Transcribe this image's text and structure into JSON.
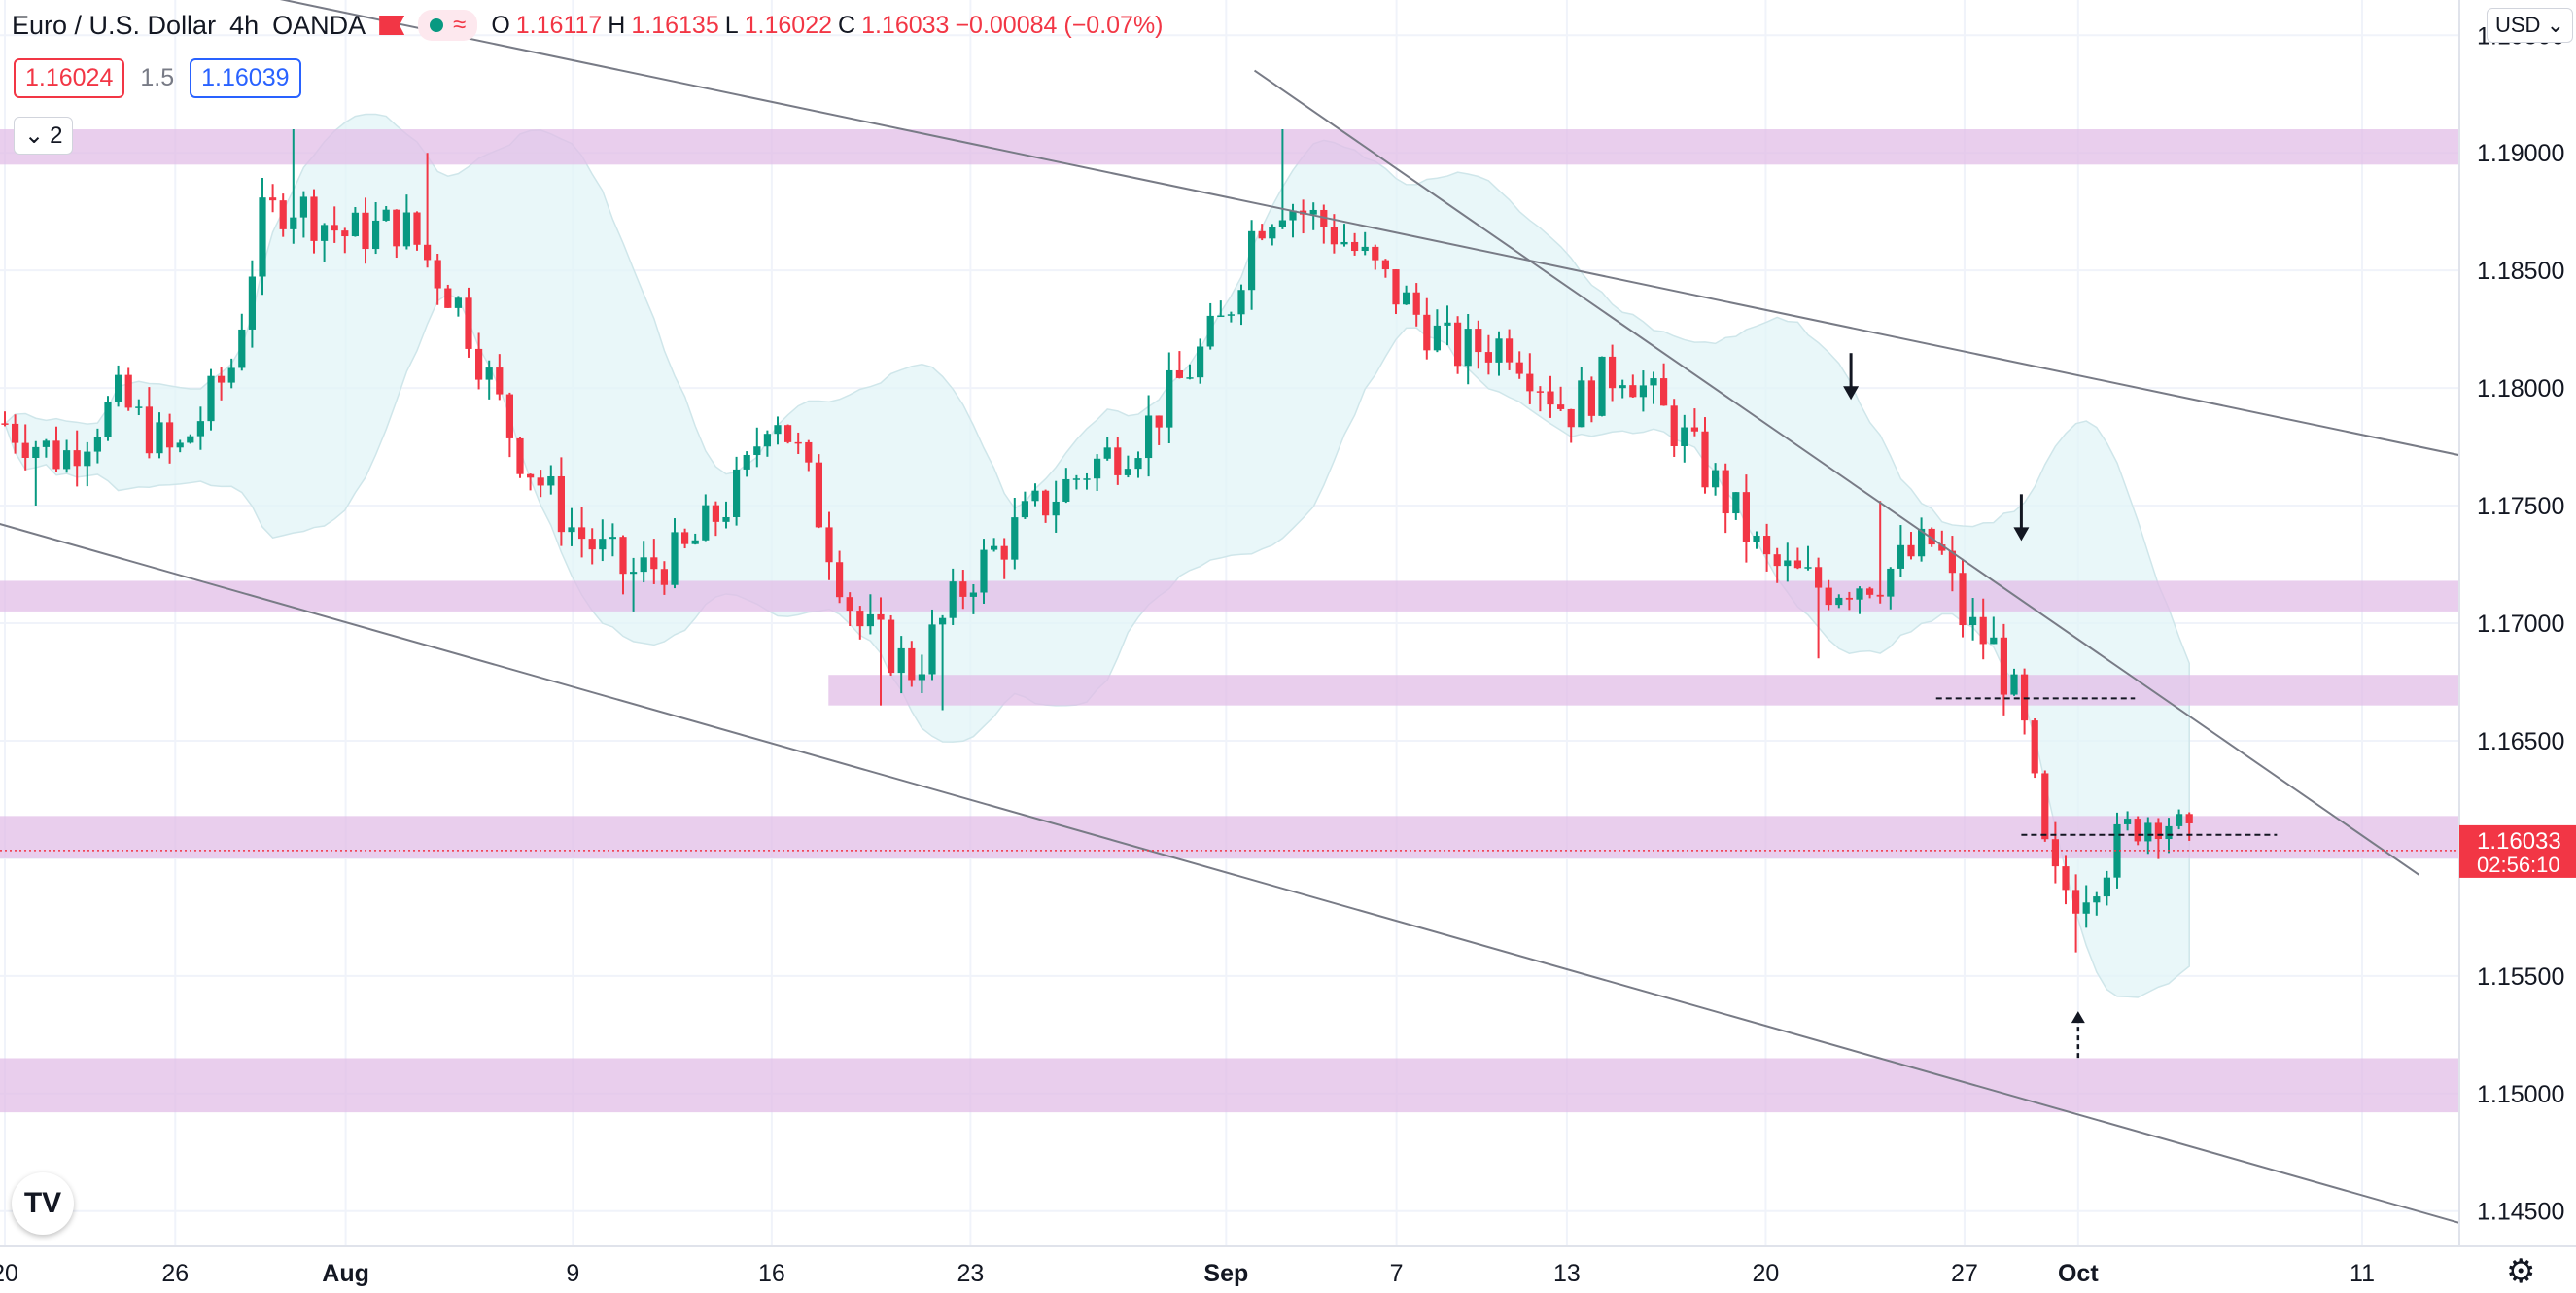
{
  "header": {
    "symbol": "Euro / U.S. Dollar",
    "interval": "4h",
    "broker": "OANDA",
    "ohlc": {
      "open_label": "O",
      "open": "1.16117",
      "high_label": "H",
      "high": "1.16135",
      "low_label": "L",
      "low": "1.16022",
      "close_label": "C",
      "close": "1.16033",
      "change": "−0.00084 (−0.07%)"
    },
    "sell_price": "1.16024",
    "spread": "1.5",
    "buy_price": "1.16039",
    "indicators_count": "2",
    "currency": "USD",
    "logo_text": "TV"
  },
  "colors": {
    "up": "#089981",
    "down": "#f23645",
    "zone": "#e1bee7",
    "band": "#e0f4f7",
    "trend": "#787b86",
    "grid": "#f0f3fa"
  },
  "chart_data": {
    "type": "candlestick",
    "title": "Euro / U.S. Dollar · 4h · OANDA",
    "ylim": [
      1.1435,
      1.1965
    ],
    "y_ticks": [
      1.145,
      1.15,
      1.155,
      1.16,
      1.165,
      1.17,
      1.175,
      1.18,
      1.185,
      1.19,
      1.195
    ],
    "y_tick_labels": [
      "1.14500",
      "1.15000",
      "1.15500",
      "1.16000",
      "1.16500",
      "1.17000",
      "1.17500",
      "1.18000",
      "1.18500",
      "1.19000",
      "1.19500"
    ],
    "x_tick_labels": [
      "20",
      "26",
      "Aug",
      "9",
      "16",
      "23",
      "Sep",
      "7",
      "13",
      "20",
      "27",
      "Oct",
      "11"
    ],
    "x_tick_dates": [
      "2021-07-20",
      "2021-07-26",
      "2021-08-01",
      "2021-08-09",
      "2021-08-16",
      "2021-08-23",
      "2021-09-01",
      "2021-09-07",
      "2021-09-13",
      "2021-09-20",
      "2021-09-27",
      "2021-10-01",
      "2021-10-11"
    ],
    "last_price": "1.16033",
    "countdown": "02:56:10",
    "close_path": [
      [
        "2021-07-20",
        1.1785
      ],
      [
        "2021-07-22",
        1.177
      ],
      [
        "2021-07-24",
        1.1795
      ],
      [
        "2021-07-26",
        1.177
      ],
      [
        "2021-07-28",
        1.181
      ],
      [
        "2021-07-29",
        1.187
      ],
      [
        "2021-07-30",
        1.188
      ],
      [
        "2021-08-01",
        1.1865
      ],
      [
        "2021-08-03",
        1.187
      ],
      [
        "2021-08-05",
        1.1835
      ],
      [
        "2021-08-07",
        1.1775
      ],
      [
        "2021-08-09",
        1.174
      ],
      [
        "2021-08-11",
        1.172
      ],
      [
        "2021-08-13",
        1.173
      ],
      [
        "2021-08-15",
        1.176
      ],
      [
        "2021-08-16",
        1.1795
      ],
      [
        "2021-08-17",
        1.177
      ],
      [
        "2021-08-19",
        1.17
      ],
      [
        "2021-08-21",
        1.168
      ],
      [
        "2021-08-23",
        1.172
      ],
      [
        "2021-08-25",
        1.1745
      ],
      [
        "2021-08-27",
        1.1765
      ],
      [
        "2021-08-29",
        1.178
      ],
      [
        "2021-09-01",
        1.183
      ],
      [
        "2021-09-02",
        1.187
      ],
      [
        "2021-09-03",
        1.188
      ],
      [
        "2021-09-05",
        1.1865
      ],
      [
        "2021-09-07",
        1.184
      ],
      [
        "2021-09-09",
        1.1815
      ],
      [
        "2021-09-11",
        1.182
      ],
      [
        "2021-09-13",
        1.179
      ],
      [
        "2021-09-15",
        1.181
      ],
      [
        "2021-09-17",
        1.178
      ],
      [
        "2021-09-19",
        1.1745
      ],
      [
        "2021-09-20",
        1.1725
      ],
      [
        "2021-09-22",
        1.1715
      ],
      [
        "2021-09-24",
        1.172
      ],
      [
        "2021-09-26",
        1.1735
      ],
      [
        "2021-09-27",
        1.17
      ],
      [
        "2021-09-28",
        1.169
      ],
      [
        "2021-09-29",
        1.166
      ],
      [
        "2021-09-30",
        1.159
      ],
      [
        "2021-10-01",
        1.1585
      ],
      [
        "2021-10-03",
        1.1615
      ],
      [
        "2021-10-04",
        1.162
      ],
      [
        "2021-10-05",
        1.1603
      ]
    ],
    "swing_highs": [
      [
        "2021-07-30",
        1.191
      ],
      [
        "2021-08-04",
        1.19
      ],
      [
        "2021-09-03",
        1.191
      ],
      [
        "2021-09-24",
        1.1752
      ]
    ],
    "swing_lows": [
      [
        "2021-07-21",
        1.175
      ],
      [
        "2021-08-11",
        1.1705
      ],
      [
        "2021-08-20",
        1.1665
      ],
      [
        "2021-08-22",
        1.1663
      ],
      [
        "2021-09-22",
        1.1685
      ],
      [
        "2021-10-01",
        1.156
      ]
    ],
    "zones": [
      [
        1.1895,
        1.191
      ],
      [
        1.1705,
        1.1718
      ],
      [
        1.1665,
        1.1678
      ],
      [
        1.16,
        1.1618
      ],
      [
        1.1492,
        1.1515
      ]
    ],
    "trendlines": [
      {
        "from": [
          "2021-07-16",
          1.2
        ],
        "to": [
          "2021-10-15",
          1.177
        ]
      },
      {
        "from": [
          "2021-07-19",
          1.1745
        ],
        "to": [
          "2021-10-15",
          1.1443
        ]
      },
      {
        "from": [
          "2021-09-02",
          1.1935
        ],
        "to": [
          "2021-10-13",
          1.1593
        ]
      }
    ],
    "level_lines": [
      {
        "from": [
          "2021-09-26",
          1.1668
        ],
        "to": [
          "2021-10-03",
          1.1668
        ]
      },
      {
        "from": [
          "2021-09-29",
          1.161
        ],
        "to": [
          "2021-10-08",
          1.161
        ]
      }
    ],
    "arrows": [
      {
        "at": [
          "2021-09-23",
          1.1795
        ],
        "direction": "down"
      },
      {
        "at": [
          "2021-09-29",
          1.1735
        ],
        "direction": "down"
      },
      {
        "at": [
          "2021-10-01",
          1.1535
        ],
        "direction": "up",
        "dashed": true
      }
    ]
  }
}
